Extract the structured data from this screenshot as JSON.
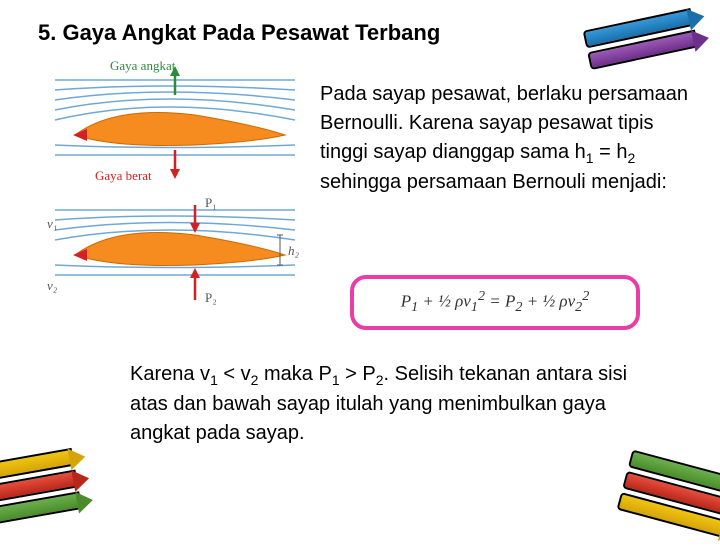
{
  "title": "5.  Gaya Angkat Pada Pesawat Terbang",
  "body_html": "Pada sayap pesawat, berlaku persamaan Bernoulli. Karena sayap pesawat tipis tinggi sayap dianggap sama h<span class=\"sub\">1</span> = h<span class=\"sub\">2</span> sehingga persamaan Bernouli menjadi:",
  "equation_html": "P<sub>1</sub> + &frac12; &rho;v<sub>1</sub><sup>2</sup> = P<sub>2</sub> + &frac12; &rho;v<sub>2</sub><sup>2</sup>",
  "bottom_html": "Karena v<span class=\"sub\">1</span> &lt; v<span class=\"sub\">2</span> maka P<span class=\"sub\">1</span> &gt; P<span class=\"sub\">2</span>. Selisih tekanan antara sisi atas dan bawah sayap itulah yang menimbulkan gaya angkat pada sayap.",
  "diagram": {
    "label_lift": "Gaya angkat",
    "label_weight": "Gaya berat",
    "label_p1": "P₁",
    "label_p2": "P₂",
    "label_v1": "v₁",
    "label_v2": "v₂",
    "label_h2": "h₂",
    "airfoil_fill": "#f68b1f",
    "streamline_color": "#6fa8d6",
    "arrow_red": "#d32020",
    "arrow_green": "#2e8b3a"
  },
  "equation_border_color": "#e83ea8",
  "crayon_colors": {
    "green": "#4a8c2a",
    "red": "#b8281a",
    "yellow": "#d4a50b",
    "blue": "#1b6fa8",
    "purple": "#6e2f8a"
  }
}
